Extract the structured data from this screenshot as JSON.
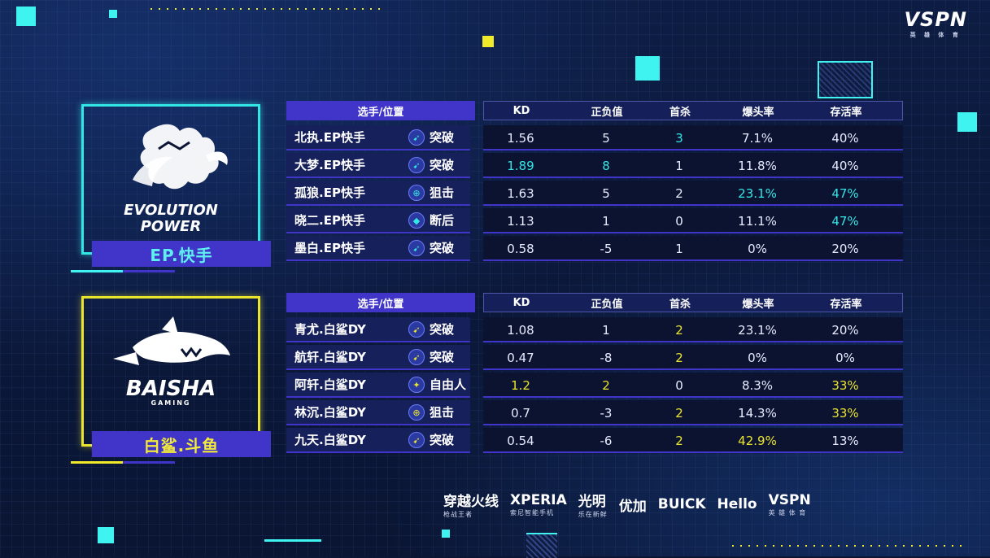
{
  "brand": {
    "name": "VSPN",
    "sub": "英 雄 体 育"
  },
  "colors": {
    "ep_accent": "#33e6e6",
    "bs_accent": "#e9e42e",
    "header_bar": "#4035c8"
  },
  "teams": [
    {
      "key": "ep",
      "label": "EP.快手",
      "logo_text": "EVOLUTION POWER",
      "header": {
        "player_pos": "选手/位置",
        "kd": "KD",
        "plusminus": "正负值",
        "first_kill": "首杀",
        "headshot": "爆头率",
        "survival": "存活率"
      },
      "players": [
        {
          "name": "北执.EP快手",
          "icon": "breach-icon",
          "role": "突破",
          "kd": "1.56",
          "pm": "5",
          "fk": "3",
          "hs": "7.1%",
          "sv": "40%",
          "hl": [
            "fk"
          ]
        },
        {
          "name": "大梦.EP快手",
          "icon": "breach-icon",
          "role": "突破",
          "kd": "1.89",
          "pm": "8",
          "fk": "1",
          "hs": "11.8%",
          "sv": "40%",
          "hl": [
            "kd",
            "pm"
          ]
        },
        {
          "name": "孤狼.EP快手",
          "icon": "sniper-icon",
          "role": "狙击",
          "kd": "1.63",
          "pm": "5",
          "fk": "2",
          "hs": "23.1%",
          "sv": "47%",
          "hl": [
            "hs",
            "sv"
          ]
        },
        {
          "name": "晓二.EP快手",
          "icon": "anchor-icon",
          "role": "断后",
          "kd": "1.13",
          "pm": "1",
          "fk": "0",
          "hs": "11.1%",
          "sv": "47%",
          "hl": [
            "sv"
          ]
        },
        {
          "name": "墨白.EP快手",
          "icon": "breach-icon",
          "role": "突破",
          "kd": "0.58",
          "pm": "-5",
          "fk": "1",
          "hs": "0%",
          "sv": "20%",
          "hl": []
        }
      ]
    },
    {
      "key": "bs",
      "label": "白鲨.斗鱼",
      "logo_text": "BAISHA",
      "logo_sub": "GAMING",
      "header": {
        "player_pos": "选手/位置",
        "kd": "KD",
        "plusminus": "正负值",
        "first_kill": "首杀",
        "headshot": "爆头率",
        "survival": "存活率"
      },
      "players": [
        {
          "name": "青尤.白鲨DY",
          "icon": "breach-icon",
          "role": "突破",
          "kd": "1.08",
          "pm": "1",
          "fk": "2",
          "hs": "23.1%",
          "sv": "20%",
          "hl": [
            "fk"
          ]
        },
        {
          "name": "航轩.白鲨DY",
          "icon": "breach-icon",
          "role": "突破",
          "kd": "0.47",
          "pm": "-8",
          "fk": "2",
          "hs": "0%",
          "sv": "0%",
          "hl": [
            "fk"
          ]
        },
        {
          "name": "阿轩.白鲨DY",
          "icon": "freeman-icon",
          "role": "自由人",
          "kd": "1.2",
          "pm": "2",
          "fk": "0",
          "hs": "8.3%",
          "sv": "33%",
          "hl": [
            "kd",
            "pm",
            "sv"
          ]
        },
        {
          "name": "林沉.白鲨DY",
          "icon": "sniper-icon",
          "role": "狙击",
          "kd": "0.7",
          "pm": "-3",
          "fk": "2",
          "hs": "14.3%",
          "sv": "33%",
          "hl": [
            "fk",
            "sv"
          ]
        },
        {
          "name": "九天.白鲨DY",
          "icon": "breach-icon",
          "role": "突破",
          "kd": "0.54",
          "pm": "-6",
          "fk": "2",
          "hs": "42.9%",
          "sv": "13%",
          "hl": [
            "fk",
            "hs"
          ]
        }
      ]
    }
  ],
  "sponsors": [
    {
      "name": "穿越火线",
      "sub": "枪战王者"
    },
    {
      "name": "XPERIA",
      "sub": "索尼智能手机"
    },
    {
      "name": "光明",
      "sub": "乐在新鲜"
    },
    {
      "name": "优加"
    },
    {
      "name": "BUICK"
    },
    {
      "name": "Hello"
    },
    {
      "name": "VSPN",
      "sub": "英 雄 体 育"
    }
  ]
}
